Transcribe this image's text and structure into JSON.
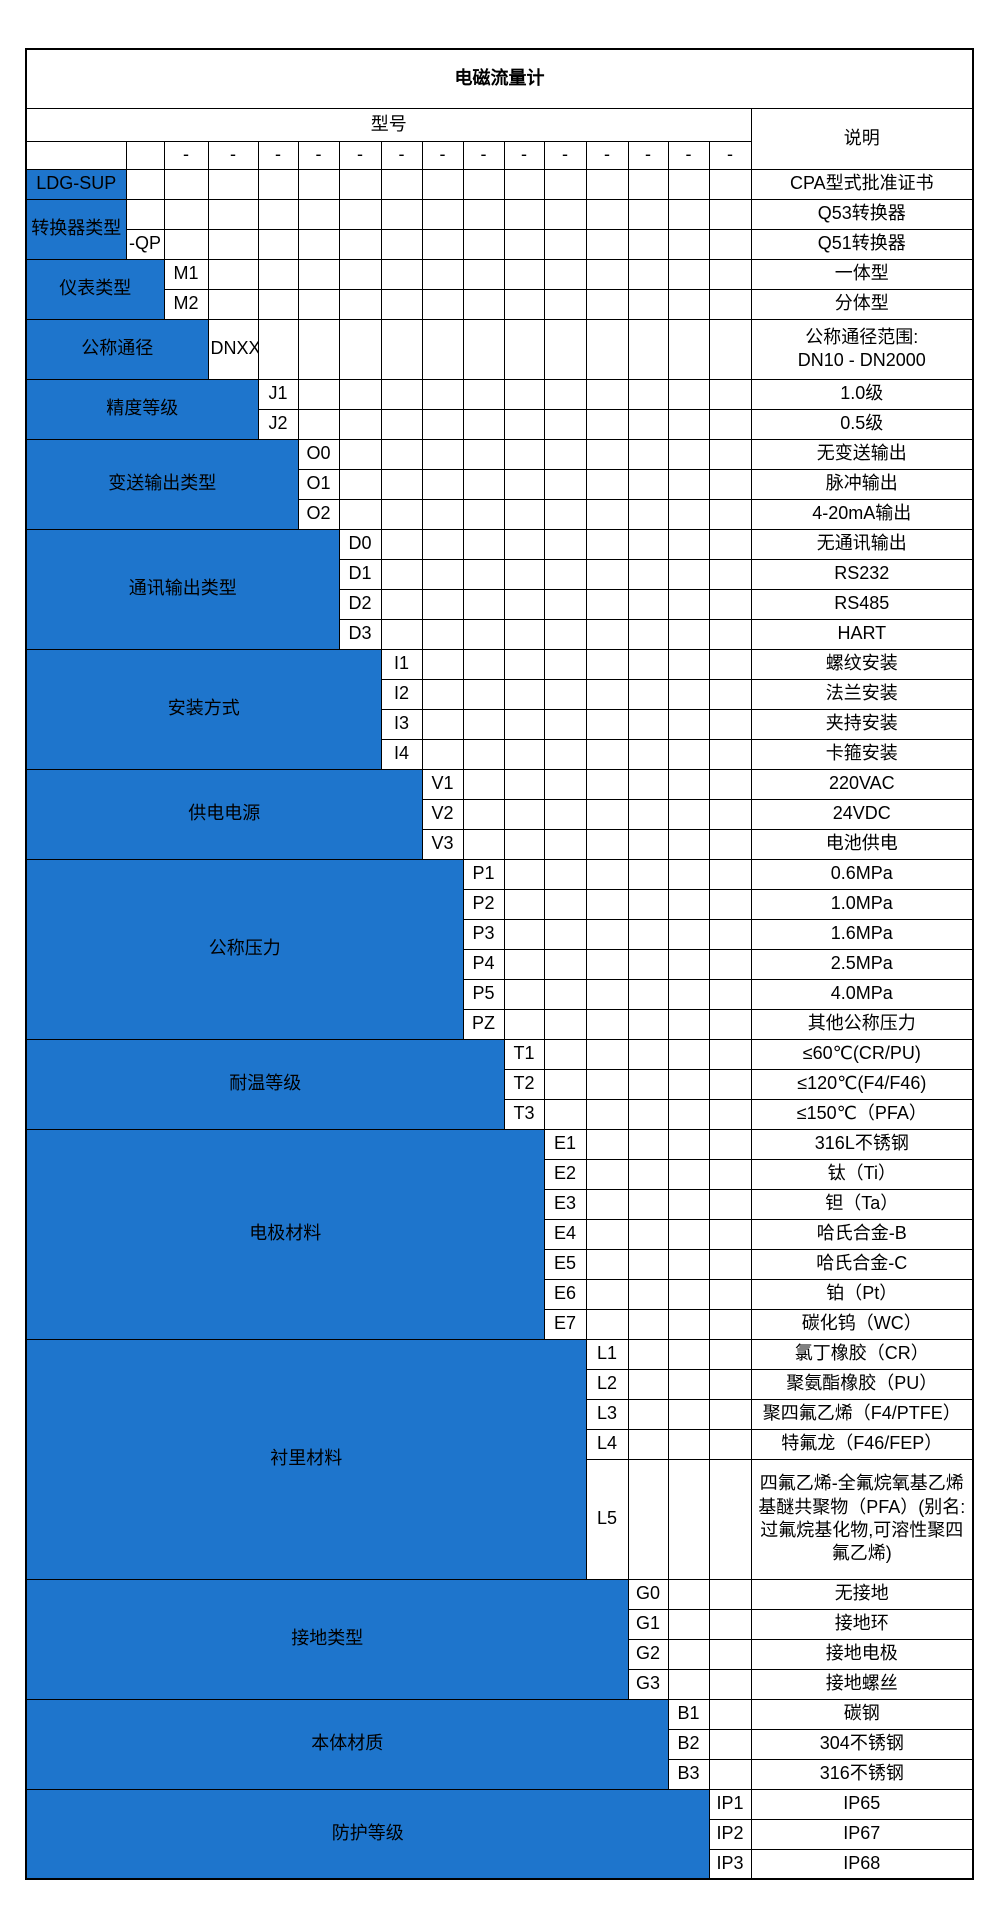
{
  "title": "电磁流量计",
  "model_header": "型号",
  "desc_header": "说明",
  "separator": "-",
  "colors": {
    "category_blue": "#1E75CC",
    "category_text": "#FFFFFF",
    "grid_border": "#000000",
    "body_text": "#000000",
    "background": "#FFFFFF"
  },
  "groups": [
    {
      "label": "LDG-SUP",
      "rows": [
        {
          "code": "",
          "desc": "CPA型式批准证书"
        }
      ]
    },
    {
      "label": "转换器类型",
      "rows": [
        {
          "code": "",
          "desc": "Q53转换器"
        },
        {
          "code": "-QP",
          "desc": "Q51转换器"
        }
      ]
    },
    {
      "label": "仪表类型",
      "rows": [
        {
          "code": "M1",
          "desc": "一体型"
        },
        {
          "code": "M2",
          "desc": "分体型"
        }
      ]
    },
    {
      "label": "公称通径",
      "rows": [
        {
          "code": "DNXX",
          "desc": "公称通径范围:\nDN10 - DN2000"
        }
      ]
    },
    {
      "label": "精度等级",
      "rows": [
        {
          "code": "J1",
          "desc": "1.0级"
        },
        {
          "code": "J2",
          "desc": "0.5级"
        }
      ]
    },
    {
      "label": "变送输出类型",
      "rows": [
        {
          "code": "O0",
          "desc": "无变送输出"
        },
        {
          "code": "O1",
          "desc": "脉冲输出"
        },
        {
          "code": "O2",
          "desc": "4-20mA输出"
        }
      ]
    },
    {
      "label": "通讯输出类型",
      "rows": [
        {
          "code": "D0",
          "desc": "无通讯输出"
        },
        {
          "code": "D1",
          "desc": "RS232"
        },
        {
          "code": "D2",
          "desc": "RS485"
        },
        {
          "code": "D3",
          "desc": "HART"
        }
      ]
    },
    {
      "label": "安装方式",
      "rows": [
        {
          "code": "I1",
          "desc": "螺纹安装"
        },
        {
          "code": "I2",
          "desc": "法兰安装"
        },
        {
          "code": "I3",
          "desc": "夹持安装"
        },
        {
          "code": "I4",
          "desc": "卡箍安装"
        }
      ]
    },
    {
      "label": "供电电源",
      "rows": [
        {
          "code": "V1",
          "desc": "220VAC"
        },
        {
          "code": "V2",
          "desc": "24VDC"
        },
        {
          "code": "V3",
          "desc": "电池供电"
        }
      ]
    },
    {
      "label": "公称压力",
      "rows": [
        {
          "code": "P1",
          "desc": "0.6MPa"
        },
        {
          "code": "P2",
          "desc": "1.0MPa"
        },
        {
          "code": "P3",
          "desc": "1.6MPa"
        },
        {
          "code": "P4",
          "desc": "2.5MPa"
        },
        {
          "code": "P5",
          "desc": "4.0MPa"
        },
        {
          "code": "PZ",
          "desc": "其他公称压力"
        }
      ]
    },
    {
      "label": "耐温等级",
      "rows": [
        {
          "code": "T1",
          "desc": "≤60℃(CR/PU)"
        },
        {
          "code": "T2",
          "desc": "≤120℃(F4/F46)"
        },
        {
          "code": "T3",
          "desc": "≤150℃（PFA）"
        }
      ]
    },
    {
      "label": "电极材料",
      "rows": [
        {
          "code": "E1",
          "desc": "316L不锈钢"
        },
        {
          "code": "E2",
          "desc": "钛（Ti）"
        },
        {
          "code": "E3",
          "desc": "钽（Ta）"
        },
        {
          "code": "E4",
          "desc": "哈氏合金-B"
        },
        {
          "code": "E5",
          "desc": "哈氏合金-C"
        },
        {
          "code": "E6",
          "desc": "铂（Pt）"
        },
        {
          "code": "E7",
          "desc": "碳化钨（WC）"
        }
      ]
    },
    {
      "label": "衬里材料",
      "rows": [
        {
          "code": "L1",
          "desc": "氯丁橡胶（CR）"
        },
        {
          "code": "L2",
          "desc": "聚氨酯橡胶（PU）"
        },
        {
          "code": "L3",
          "desc": "聚四氟乙烯（F4/PTFE）"
        },
        {
          "code": "L4",
          "desc": "特氟龙（F46/FEP）"
        },
        {
          "code": "L5",
          "desc": "四氟乙烯-全氟烷氧基乙烯基醚共聚物（PFA）(别名:过氟烷基化物,可溶性聚四氟乙烯)"
        }
      ]
    },
    {
      "label": "接地类型",
      "rows": [
        {
          "code": "G0",
          "desc": "无接地"
        },
        {
          "code": "G1",
          "desc": "接地环"
        },
        {
          "code": "G2",
          "desc": "接地电极"
        },
        {
          "code": "G3",
          "desc": "接地螺丝"
        }
      ]
    },
    {
      "label": "本体材质",
      "rows": [
        {
          "code": "B1",
          "desc": "碳钢"
        },
        {
          "code": "B2",
          "desc": "304不锈钢"
        },
        {
          "code": "B3",
          "desc": "316不锈钢"
        }
      ]
    },
    {
      "label": "防护等级",
      "rows": [
        {
          "code": "IP1",
          "desc": "IP65"
        },
        {
          "code": "IP2",
          "desc": "IP67"
        },
        {
          "code": "IP3",
          "desc": "IP68"
        }
      ]
    }
  ]
}
